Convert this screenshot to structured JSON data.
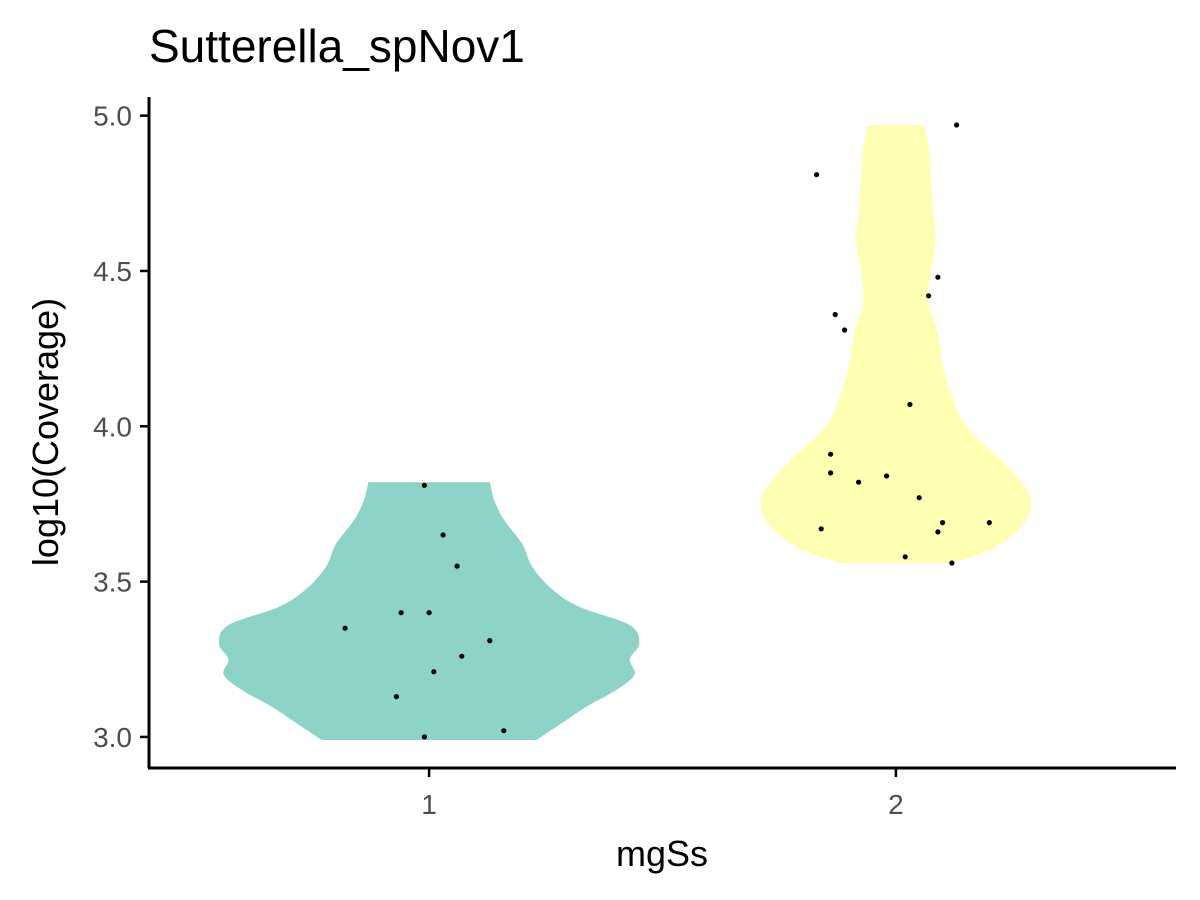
{
  "chart_data": {
    "type": "violin",
    "title": "Sutterella_spNov1",
    "xlabel": "mgSs",
    "ylabel": "log10(Coverage)",
    "categories": [
      "1",
      "2"
    ],
    "ylim": [
      2.9,
      5.06
    ],
    "yticks": [
      3.0,
      3.5,
      4.0,
      4.5,
      5.0
    ],
    "ytick_labels": [
      "3.0",
      "3.5",
      "4.0",
      "4.5",
      "5.0"
    ],
    "grid": false,
    "legend": "none",
    "colors": {
      "1": "#8dd3c7",
      "2": "#ffffb3",
      "points": "#000000",
      "axis": "#000000"
    },
    "series": [
      {
        "group": "1",
        "range": [
          2.99,
          3.82
        ],
        "violin_profile": [
          {
            "y": 2.99,
            "halfwidth": 0.23
          },
          {
            "y": 3.05,
            "halfwidth": 0.29
          },
          {
            "y": 3.1,
            "halfwidth": 0.34
          },
          {
            "y": 3.15,
            "halfwidth": 0.4
          },
          {
            "y": 3.2,
            "halfwidth": 0.44
          },
          {
            "y": 3.25,
            "halfwidth": 0.43
          },
          {
            "y": 3.3,
            "halfwidth": 0.45
          },
          {
            "y": 3.36,
            "halfwidth": 0.43
          },
          {
            "y": 3.42,
            "halfwidth": 0.32
          },
          {
            "y": 3.48,
            "halfwidth": 0.26
          },
          {
            "y": 3.55,
            "halfwidth": 0.22
          },
          {
            "y": 3.62,
            "halfwidth": 0.2
          },
          {
            "y": 3.7,
            "halfwidth": 0.16
          },
          {
            "y": 3.76,
            "halfwidth": 0.14
          },
          {
            "y": 3.82,
            "halfwidth": 0.13
          }
        ],
        "points": [
          {
            "x": 0.99,
            "y": 3.81
          },
          {
            "x": 1.03,
            "y": 3.65
          },
          {
            "x": 1.06,
            "y": 3.55
          },
          {
            "x": 0.94,
            "y": 3.4
          },
          {
            "x": 1.0,
            "y": 3.4
          },
          {
            "x": 0.82,
            "y": 3.35
          },
          {
            "x": 1.13,
            "y": 3.31
          },
          {
            "x": 1.07,
            "y": 3.26
          },
          {
            "x": 1.01,
            "y": 3.21
          },
          {
            "x": 0.93,
            "y": 3.13
          },
          {
            "x": 1.16,
            "y": 3.02
          },
          {
            "x": 0.99,
            "y": 3.0
          }
        ]
      },
      {
        "group": "2",
        "range": [
          3.56,
          4.97
        ],
        "violin_profile": [
          {
            "y": 3.56,
            "halfwidth": 0.12
          },
          {
            "y": 3.6,
            "halfwidth": 0.2
          },
          {
            "y": 3.65,
            "halfwidth": 0.25
          },
          {
            "y": 3.7,
            "halfwidth": 0.28
          },
          {
            "y": 3.76,
            "halfwidth": 0.29
          },
          {
            "y": 3.82,
            "halfwidth": 0.27
          },
          {
            "y": 3.9,
            "halfwidth": 0.22
          },
          {
            "y": 4.0,
            "halfwidth": 0.15
          },
          {
            "y": 4.1,
            "halfwidth": 0.12
          },
          {
            "y": 4.2,
            "halfwidth": 0.1
          },
          {
            "y": 4.3,
            "halfwidth": 0.09
          },
          {
            "y": 4.4,
            "halfwidth": 0.07
          },
          {
            "y": 4.5,
            "halfwidth": 0.075
          },
          {
            "y": 4.6,
            "halfwidth": 0.085
          },
          {
            "y": 4.7,
            "halfwidth": 0.08
          },
          {
            "y": 4.8,
            "halfwidth": 0.075
          },
          {
            "y": 4.9,
            "halfwidth": 0.07
          },
          {
            "y": 4.97,
            "halfwidth": 0.06
          }
        ],
        "points": [
          {
            "x": 2.13,
            "y": 4.97
          },
          {
            "x": 1.83,
            "y": 4.81
          },
          {
            "x": 2.09,
            "y": 4.48
          },
          {
            "x": 2.07,
            "y": 4.42
          },
          {
            "x": 1.87,
            "y": 4.36
          },
          {
            "x": 1.89,
            "y": 4.31
          },
          {
            "x": 2.03,
            "y": 4.07
          },
          {
            "x": 1.86,
            "y": 3.91
          },
          {
            "x": 1.86,
            "y": 3.85
          },
          {
            "x": 1.98,
            "y": 3.84
          },
          {
            "x": 1.92,
            "y": 3.82
          },
          {
            "x": 2.05,
            "y": 3.77
          },
          {
            "x": 2.2,
            "y": 3.69
          },
          {
            "x": 2.1,
            "y": 3.69
          },
          {
            "x": 1.84,
            "y": 3.67
          },
          {
            "x": 2.09,
            "y": 3.66
          },
          {
            "x": 2.02,
            "y": 3.58
          },
          {
            "x": 2.12,
            "y": 3.56
          }
        ]
      }
    ]
  }
}
